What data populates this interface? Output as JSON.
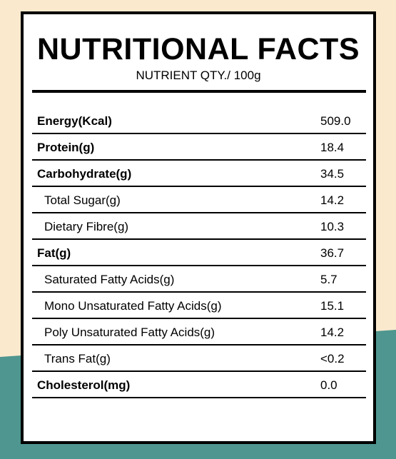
{
  "panel": {
    "title": "NUTRITIONAL FACTS",
    "subtitle": "NUTRIENT QTY./ 100g"
  },
  "colors": {
    "background_cream": "#fbe9ce",
    "background_teal": "#4e968f",
    "card": "#ffffff",
    "rule": "#000000"
  },
  "nutrients": [
    {
      "label": "Energy(Kcal)",
      "value": "509.0",
      "bold": true,
      "indent": false
    },
    {
      "label": "Protein(g)",
      "value": "18.4",
      "bold": true,
      "indent": false
    },
    {
      "label": "Carbohydrate(g)",
      "value": "34.5",
      "bold": true,
      "indent": false
    },
    {
      "label": "Total Sugar(g)",
      "value": "14.2",
      "bold": false,
      "indent": true
    },
    {
      "label": "Dietary Fibre(g)",
      "value": "10.3",
      "bold": false,
      "indent": true
    },
    {
      "label": "Fat(g)",
      "value": "36.7",
      "bold": true,
      "indent": false
    },
    {
      "label": "Saturated Fatty Acids(g)",
      "value": "5.7",
      "bold": false,
      "indent": true
    },
    {
      "label": "Mono Unsaturated Fatty Acids(g)",
      "value": "15.1",
      "bold": false,
      "indent": true
    },
    {
      "label": "Poly Unsaturated Fatty Acids(g)",
      "value": "14.2",
      "bold": false,
      "indent": true
    },
    {
      "label": "Trans Fat(g)",
      "value": "<0.2",
      "bold": false,
      "indent": true
    },
    {
      "label": "Cholesterol(mg)",
      "value": "0.0",
      "bold": true,
      "indent": false
    }
  ]
}
